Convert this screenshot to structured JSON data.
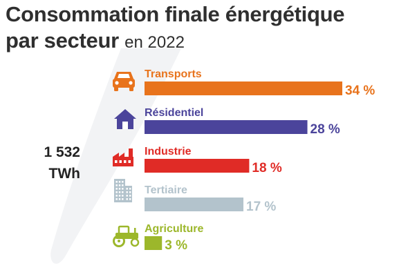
{
  "title": {
    "line1": "Consommation finale énergétique",
    "line2": "par secteur",
    "year": "en 2022"
  },
  "total": {
    "value": "1 532",
    "unit": "TWh"
  },
  "chart_data": {
    "type": "bar",
    "orientation": "horizontal",
    "categories": [
      "Transports",
      "Résidentiel",
      "Industrie",
      "Tertiaire",
      "Agriculture"
    ],
    "values": [
      34,
      28,
      18,
      17,
      3
    ],
    "value_labels": [
      "34 %",
      "28 %",
      "18 %",
      "17 %",
      "3 %"
    ],
    "colors": [
      "#e8731c",
      "#4b449b",
      "#e02b26",
      "#b3c3cc",
      "#9cb72b"
    ],
    "icons": [
      "car-icon",
      "house-icon",
      "factory-icon",
      "office-building-icon",
      "tractor-icon"
    ],
    "xlim": [
      0,
      34
    ],
    "grid": false,
    "legend": "none"
  }
}
